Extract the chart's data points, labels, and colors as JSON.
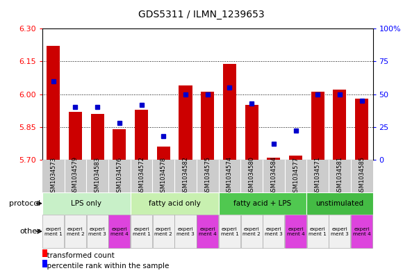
{
  "title": "GDS5311 / ILMN_1239653",
  "samples": [
    "GSM1034573",
    "GSM1034579",
    "GSM1034583",
    "GSM1034576",
    "GSM1034572",
    "GSM1034578",
    "GSM1034582",
    "GSM1034575",
    "GSM1034574",
    "GSM1034580",
    "GSM1034584",
    "GSM1034577",
    "GSM1034571",
    "GSM1034581",
    "GSM1034585"
  ],
  "red_values": [
    6.22,
    5.92,
    5.91,
    5.84,
    5.93,
    5.76,
    6.04,
    6.01,
    6.14,
    5.95,
    5.71,
    5.72,
    6.01,
    6.02,
    5.98
  ],
  "blue_values": [
    60,
    40,
    40,
    28,
    42,
    18,
    50,
    50,
    55,
    43,
    12,
    22,
    50,
    50,
    45
  ],
  "y_min": 5.7,
  "y_max": 6.3,
  "y_ticks_red": [
    5.7,
    5.85,
    6.0,
    6.15,
    6.3
  ],
  "y_ticks_blue": [
    0,
    25,
    50,
    75,
    100
  ],
  "protocol_groups": [
    {
      "label": "LPS only",
      "start": 0,
      "end": 4,
      "color": "#c8f0c8"
    },
    {
      "label": "fatty acid only",
      "start": 4,
      "end": 8,
      "color": "#c8f0b0"
    },
    {
      "label": "fatty acid + LPS",
      "start": 8,
      "end": 12,
      "color": "#50c850"
    },
    {
      "label": "unstimulated",
      "start": 12,
      "end": 15,
      "color": "#44bb44"
    }
  ],
  "other_bg_white": "#f0f0f0",
  "other_bg_pink": "#dd44dd",
  "bar_color": "#cc0000",
  "dot_color": "#0000cc",
  "bg_color": "#ffffff",
  "sample_bg": "#cccccc",
  "label_font_size": 7,
  "tick_font_size": 8,
  "title_fontsize": 10
}
